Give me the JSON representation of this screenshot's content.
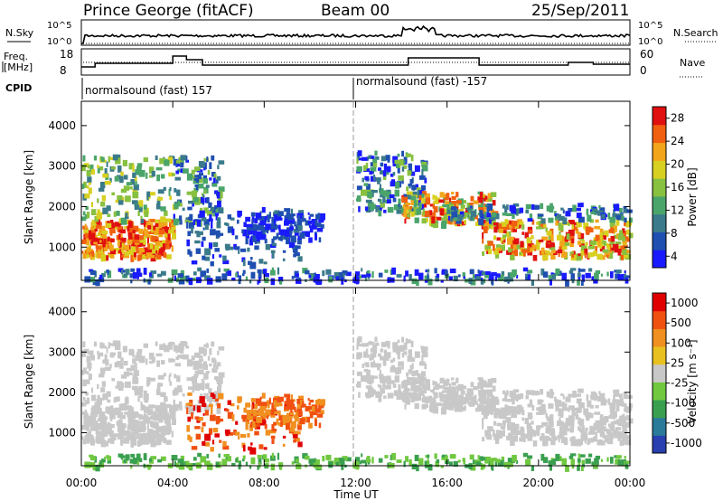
{
  "header": {
    "station": "Prince George (fitACF)",
    "beam": "Beam 00",
    "date": "25/Sep/2011"
  },
  "panels": {
    "nsky": {
      "label": "N.Sky",
      "right_label": "N.Search",
      "left_ticks": [
        "10^5",
        "10^0"
      ],
      "right_ticks": [
        "10^5",
        "10^0"
      ]
    },
    "freq": {
      "label_line1": "Freq.",
      "label_line2": "[MHz]",
      "left_ticks": [
        "18",
        "8"
      ],
      "right_label": "Nave",
      "right_ticks": [
        "60",
        "0"
      ]
    },
    "cpid": {
      "label": "CPID",
      "segments": [
        "normalsound (fast) 157",
        "normalsound (fast) -157"
      ]
    }
  },
  "chart_data": [
    {
      "type": "heatmap",
      "title": "",
      "ylabel": "Slant Range [km]",
      "xlabel": "",
      "xlim": [
        "00:00",
        "24:00"
      ],
      "ylim": [
        180,
        4600
      ],
      "yticks": [
        "1000",
        "2000",
        "3000",
        "4000"
      ],
      "colorbar": {
        "label": "Power [dB]",
        "range": [
          0,
          30
        ],
        "ticks": [
          "4",
          "8",
          "12",
          "16",
          "20",
          "24",
          "28"
        ],
        "colors": [
          "#1a1aff",
          "#1f4fb0",
          "#3a7a8a",
          "#4aa56a",
          "#88c040",
          "#d8d020",
          "#f2a51a",
          "#f06010",
          "#e01010"
        ]
      }
    },
    {
      "type": "heatmap",
      "title": "",
      "ylabel": "Slant Range [km]",
      "xlabel": "Time UT",
      "xlim": [
        "00:00",
        "24:00"
      ],
      "ylim": [
        180,
        4600
      ],
      "yticks": [
        "1000",
        "2000",
        "3000",
        "4000"
      ],
      "xticks": [
        "00:00",
        "04:00",
        "08:00",
        "12:00",
        "16:00",
        "20:00",
        "00:00"
      ],
      "colorbar": {
        "label": "Velocity [m s⁻¹]",
        "range": [
          -1000,
          1000
        ],
        "ticks": [
          "1000",
          "500",
          "100",
          "25",
          "-25",
          "-100",
          "-500",
          "-1000"
        ],
        "colors": [
          "#2840b0",
          "#2a7a9a",
          "#3aa050",
          "#70c840",
          "#c8c8c8",
          "#e8c020",
          "#f09020",
          "#f05010",
          "#e00000"
        ]
      }
    }
  ]
}
